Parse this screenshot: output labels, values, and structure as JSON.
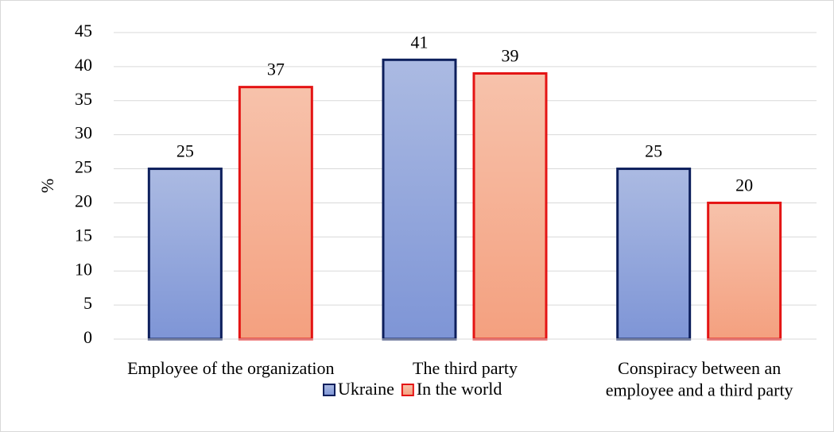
{
  "chart_data": {
    "type": "bar",
    "y_label": "%",
    "categories": [
      "Employee of the organization",
      "The third party",
      "Conspiracy between an employee and a third party"
    ],
    "series": [
      {
        "name": "Ukraine",
        "color": "#8fa3da",
        "border": "#0d1f5c",
        "values": [
          25,
          41,
          25
        ]
      },
      {
        "name": "In the world",
        "color": "#f5ae90",
        "border": "#e41414",
        "values": [
          37,
          39,
          20
        ]
      }
    ],
    "ylim": [
      0,
      45
    ],
    "yticks": [
      0,
      5,
      10,
      15,
      20,
      25,
      30,
      35,
      40,
      45
    ],
    "grid": true,
    "legend": "bottom"
  }
}
